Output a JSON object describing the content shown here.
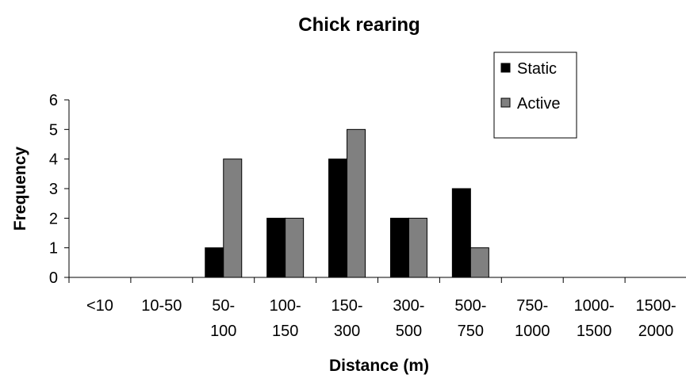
{
  "chart_data": {
    "type": "bar",
    "title": "Chick rearing",
    "xlabel": "Distance (m)",
    "ylabel": "Frequency",
    "ylim": [
      0,
      6
    ],
    "yticks": [
      0,
      1,
      2,
      3,
      4,
      5,
      6
    ],
    "grid": false,
    "legend_position": "top-right",
    "categories": [
      [
        "<10"
      ],
      [
        "10-50"
      ],
      [
        "50-",
        "100"
      ],
      [
        "100-",
        "150"
      ],
      [
        "150-",
        "300"
      ],
      [
        "300-",
        "500"
      ],
      [
        "500-",
        "750"
      ],
      [
        "750-",
        "1000"
      ],
      [
        "1000-",
        "1500"
      ],
      [
        "1500-",
        "2000"
      ]
    ],
    "series": [
      {
        "name": "Static",
        "color": "#000000",
        "values": [
          0,
          0,
          1,
          2,
          4,
          2,
          3,
          0,
          0,
          0
        ]
      },
      {
        "name": "Active",
        "color": "#808080",
        "values": [
          0,
          0,
          4,
          2,
          5,
          2,
          1,
          0,
          0,
          0
        ]
      }
    ]
  }
}
